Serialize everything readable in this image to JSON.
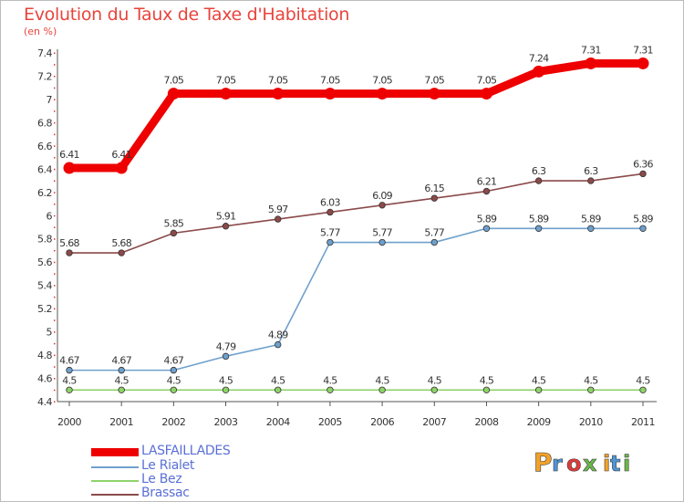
{
  "header": {
    "title": "Evolution du Taux de Taxe d'Habitation",
    "unit": "(en %)"
  },
  "brand": {
    "name": "Proxiti",
    "colors": [
      "#f2a229",
      "#4e95d6",
      "#e03a3a",
      "#6ab84a",
      "#f2a229",
      "#4e95d6",
      "#6ab84a"
    ]
  },
  "chart_data": {
    "type": "line",
    "title": "Evolution du Taux de Taxe d'Habitation",
    "subtitle": "(en %)",
    "xlabel": "",
    "ylabel": "",
    "x": [
      "2000",
      "2001",
      "2002",
      "2003",
      "2004",
      "2005",
      "2006",
      "2007",
      "2008",
      "2009",
      "2010",
      "2011"
    ],
    "y_ticks": [
      "4.4",
      "4.6",
      "4.8",
      "5",
      "5.2",
      "5.4",
      "5.6",
      "5.8",
      "6",
      "6.2",
      "6.4",
      "6.6",
      "6.8",
      "7",
      "7.2",
      "7.4"
    ],
    "ylim": [
      4.4,
      7.4
    ],
    "grid": false,
    "legend_position": "bottom-left",
    "series": [
      {
        "name": "LASFAILLADES",
        "color": "#ee0000",
        "values": [
          6.41,
          6.41,
          7.05,
          7.05,
          7.05,
          7.05,
          7.05,
          7.05,
          7.05,
          7.24,
          7.31,
          7.31
        ],
        "labels": [
          "6.41",
          "6.41",
          "7.05",
          "7.05",
          "7.05",
          "7.05",
          "7.05",
          "7.05",
          "7.05",
          "7.24",
          "7.31",
          "7.31"
        ]
      },
      {
        "name": "Le Rialet",
        "color": "#6fa0cc",
        "values": [
          4.67,
          4.67,
          4.67,
          4.79,
          4.89,
          5.77,
          5.77,
          5.77,
          5.89,
          5.89,
          5.89,
          5.89
        ],
        "labels": [
          "4.67",
          "4.67",
          "4.67",
          "4.79",
          "4.89",
          "5.77",
          "5.77",
          "5.77",
          "5.89",
          "5.89",
          "5.89",
          "5.89"
        ]
      },
      {
        "name": "Le Bez",
        "color": "#8ed26a",
        "values": [
          4.5,
          4.5,
          4.5,
          4.5,
          4.5,
          4.5,
          4.5,
          4.5,
          4.5,
          4.5,
          4.5,
          4.5
        ],
        "labels": [
          "4.5",
          "4.5",
          "4.5",
          "4.5",
          "4.5",
          "4.5",
          "4.5",
          "4.5",
          "4.5",
          "4.5",
          "4.5",
          "4.5"
        ]
      },
      {
        "name": "Brassac",
        "color": "#8b4a4a",
        "values": [
          5.68,
          5.68,
          5.85,
          5.91,
          5.97,
          6.03,
          6.09,
          6.15,
          6.21,
          6.3,
          6.3,
          6.36
        ],
        "labels": [
          "5.68",
          "5.68",
          "5.85",
          "5.91",
          "5.97",
          "6.03",
          "6.09",
          "6.15",
          "6.21",
          "6.3",
          "6.3",
          "6.36"
        ]
      }
    ]
  }
}
